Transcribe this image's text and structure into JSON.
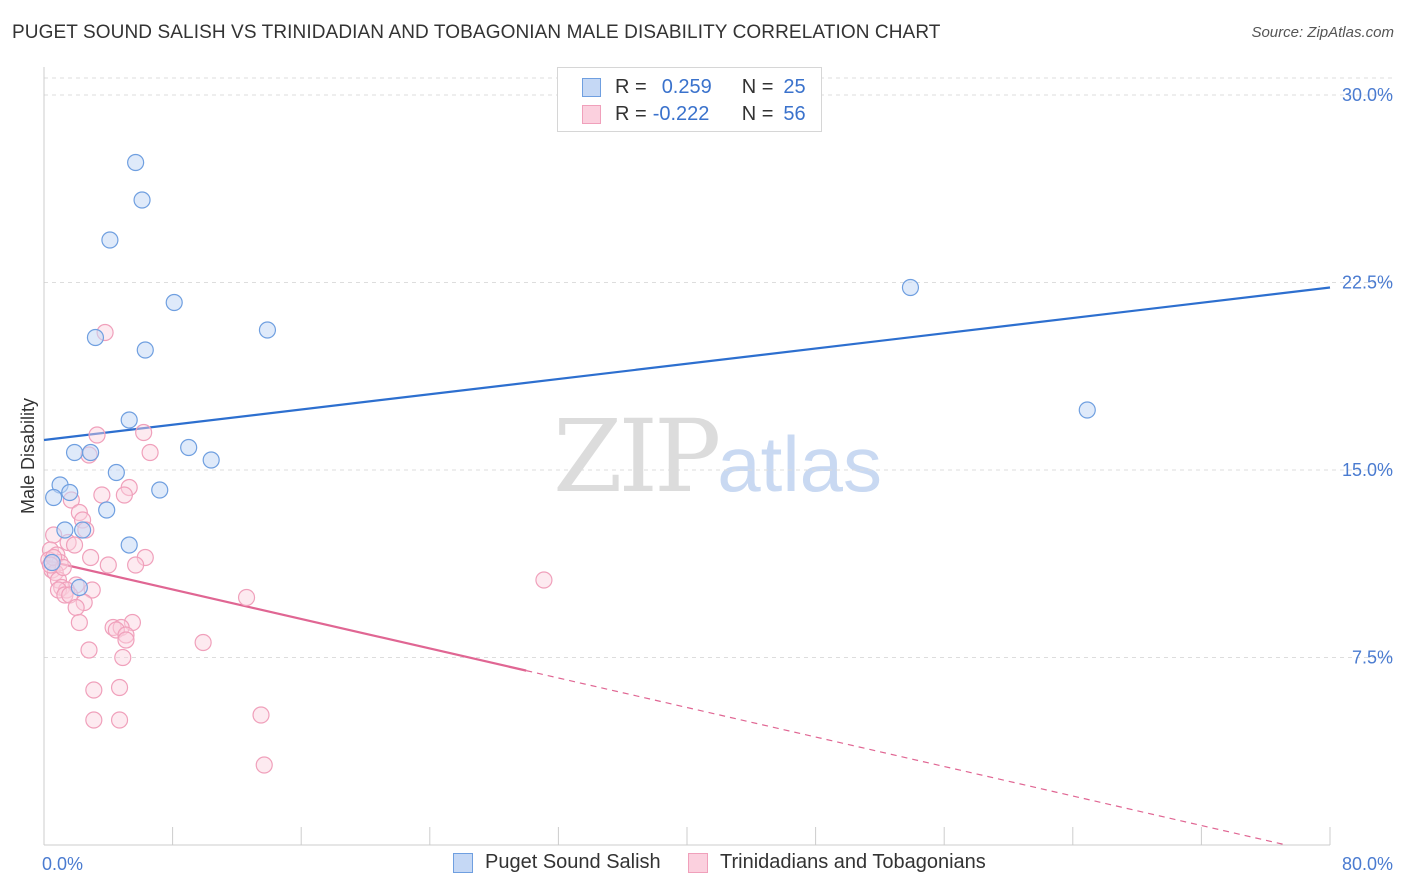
{
  "title": "PUGET SOUND SALISH VS TRINIDADIAN AND TOBAGONIAN MALE DISABILITY CORRELATION CHART",
  "source": "Source: ZipAtlas.com",
  "watermark": {
    "zip": "ZIP",
    "atlas": "atlas"
  },
  "legend": {
    "rows": [
      {
        "r_label": "R =",
        "r_value": "0.259",
        "n_label": "N =",
        "n_value": "25"
      },
      {
        "r_label": "R =",
        "r_value": "-0.222",
        "n_label": "N =",
        "n_value": "56"
      }
    ]
  },
  "bottom_legend": [
    "Puget Sound Salish",
    "Trinidadians and Tobagonians"
  ],
  "chart_data": {
    "type": "scatter",
    "title": "PUGET SOUND SALISH VS TRINIDADIAN AND TOBAGONIAN MALE DISABILITY CORRELATION CHART",
    "xlabel": "",
    "ylabel": "Male Disability",
    "xlim": [
      0,
      80
    ],
    "ylim": [
      0,
      31
    ],
    "x_tick_labels": [
      "0.0%",
      "80.0%"
    ],
    "y_ticks": [
      7.5,
      15.0,
      22.5,
      30.0
    ],
    "y_tick_labels": [
      "7.5%",
      "15.0%",
      "22.5%",
      "30.0%"
    ],
    "grid": "horizontal dashed",
    "legend_position": "top-center",
    "colors": {
      "series1": "#6f9fe0",
      "series1_line": "#2d6fcf",
      "series2": "#f0a0bb",
      "series2_line": "#e06693"
    },
    "series": [
      {
        "name": "Puget Sound Salish",
        "r": 0.259,
        "n": 25,
        "points": [
          [
            5.7,
            27.3
          ],
          [
            6.1,
            25.8
          ],
          [
            4.1,
            24.2
          ],
          [
            8.1,
            21.7
          ],
          [
            3.2,
            20.3
          ],
          [
            6.3,
            19.8
          ],
          [
            13.9,
            20.6
          ],
          [
            53.9,
            22.3
          ],
          [
            64.9,
            17.4
          ],
          [
            5.3,
            17.0
          ],
          [
            1.9,
            15.7
          ],
          [
            2.9,
            15.7
          ],
          [
            9.0,
            15.9
          ],
          [
            10.4,
            15.4
          ],
          [
            4.5,
            14.9
          ],
          [
            1.0,
            14.4
          ],
          [
            1.6,
            14.1
          ],
          [
            0.6,
            13.9
          ],
          [
            7.2,
            14.2
          ],
          [
            3.9,
            13.4
          ],
          [
            1.3,
            12.6
          ],
          [
            2.4,
            12.6
          ],
          [
            5.3,
            12.0
          ],
          [
            2.2,
            10.3
          ],
          [
            0.5,
            11.3
          ]
        ],
        "trend": {
          "x": [
            0,
            80
          ],
          "y": [
            16.2,
            22.3
          ],
          "solid_until": 80
        }
      },
      {
        "name": "Trinidadians and Tobagonians",
        "r": -0.222,
        "n": 56,
        "points": [
          [
            3.8,
            20.5
          ],
          [
            6.2,
            16.5
          ],
          [
            3.3,
            16.4
          ],
          [
            6.6,
            15.7
          ],
          [
            2.8,
            15.6
          ],
          [
            5.3,
            14.3
          ],
          [
            3.6,
            14.0
          ],
          [
            5.0,
            14.0
          ],
          [
            1.7,
            13.8
          ],
          [
            2.2,
            13.3
          ],
          [
            2.4,
            13.0
          ],
          [
            2.6,
            12.6
          ],
          [
            0.6,
            12.4
          ],
          [
            1.5,
            12.1
          ],
          [
            1.9,
            12.0
          ],
          [
            0.4,
            11.8
          ],
          [
            0.8,
            11.6
          ],
          [
            2.9,
            11.5
          ],
          [
            6.3,
            11.5
          ],
          [
            0.3,
            11.4
          ],
          [
            1.0,
            11.3
          ],
          [
            4.0,
            11.2
          ],
          [
            5.7,
            11.2
          ],
          [
            0.5,
            11.0
          ],
          [
            0.7,
            10.9
          ],
          [
            0.9,
            10.6
          ],
          [
            2.0,
            10.4
          ],
          [
            1.1,
            10.3
          ],
          [
            1.4,
            10.2
          ],
          [
            0.9,
            10.2
          ],
          [
            3.0,
            10.2
          ],
          [
            1.3,
            10.0
          ],
          [
            1.6,
            10.0
          ],
          [
            31.1,
            10.6
          ],
          [
            12.6,
            9.9
          ],
          [
            2.5,
            9.7
          ],
          [
            2.0,
            9.5
          ],
          [
            5.5,
            8.9
          ],
          [
            2.2,
            8.9
          ],
          [
            4.3,
            8.7
          ],
          [
            4.8,
            8.7
          ],
          [
            4.5,
            8.6
          ],
          [
            5.1,
            8.4
          ],
          [
            5.1,
            8.2
          ],
          [
            9.9,
            8.1
          ],
          [
            2.8,
            7.8
          ],
          [
            4.9,
            7.5
          ],
          [
            4.7,
            6.3
          ],
          [
            3.1,
            6.2
          ],
          [
            13.5,
            5.2
          ],
          [
            3.1,
            5.0
          ],
          [
            4.7,
            5.0
          ],
          [
            13.7,
            3.2
          ],
          [
            0.6,
            11.5
          ],
          [
            1.2,
            11.1
          ],
          [
            0.4,
            11.2
          ]
        ],
        "trend": {
          "x": [
            0,
            80
          ],
          "y": [
            11.4,
            -0.4
          ],
          "solid_until": 30
        }
      }
    ]
  }
}
